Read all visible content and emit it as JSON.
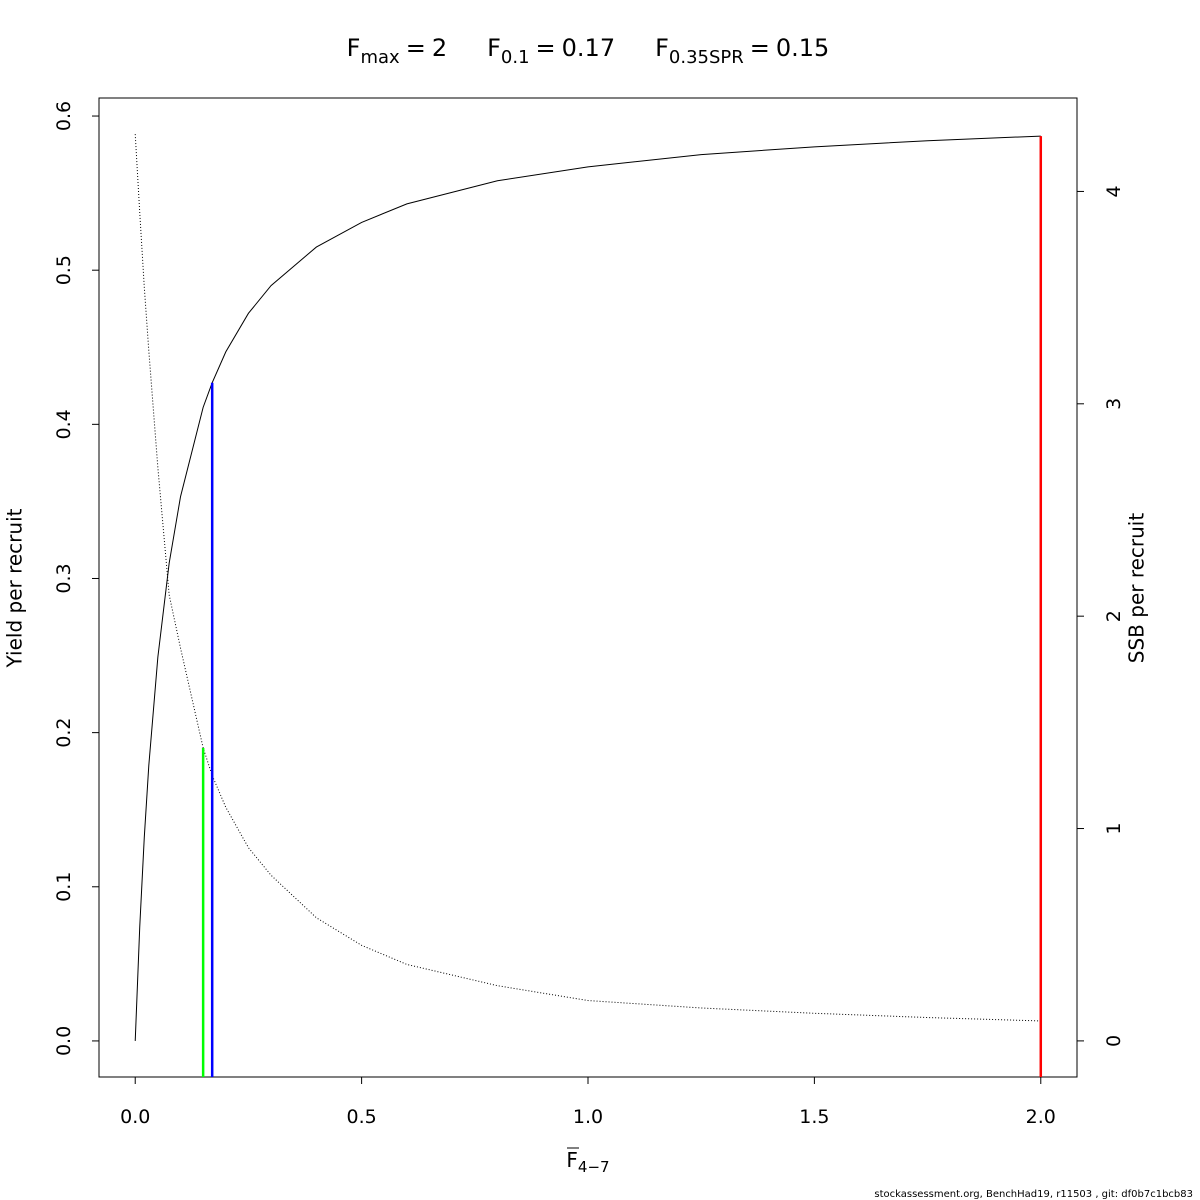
{
  "chart_data": {
    "type": "line",
    "reference_lines": [
      {
        "symbol": "F",
        "subscript": "max",
        "sign": "=",
        "x": 2,
        "y": 0.587,
        "color": "#ff0000"
      },
      {
        "symbol": "F",
        "subscript": "0.1",
        "sign": "=",
        "x": 0.17,
        "y": 0.427,
        "color": "#0000ff"
      },
      {
        "symbol": "F",
        "subscript": "0.35SPR",
        "sign": "=",
        "x": 0.15,
        "y": 0.19,
        "color": "#00ff00"
      }
    ],
    "xlabel": {
      "symbol": "F",
      "subscript": "4−7"
    },
    "ylabel": "Yield per recruit",
    "y2label": "SSB per recruit",
    "footer": "stockassessment.org, BenchHad19, r11503 , git: df0b7c1bcb83",
    "x": [
      0,
      0.01,
      0.02,
      0.03,
      0.05,
      0.075,
      0.1,
      0.15,
      0.17,
      0.2,
      0.25,
      0.3,
      0.4,
      0.5,
      0.6,
      0.8,
      1.0,
      1.25,
      1.5,
      1.75,
      2.0
    ],
    "series": [
      {
        "color": "#000000",
        "style": "solid",
        "axis": "y",
        "values": [
          0,
          0.0741,
          0.132,
          0.1787,
          0.249,
          0.31,
          0.353,
          0.411,
          0.427,
          0.447,
          0.472,
          0.49,
          0.515,
          0.531,
          0.543,
          0.558,
          0.567,
          0.575,
          0.58,
          0.584,
          0.587
        ]
      },
      {
        "color": "#000000",
        "style": "dotted",
        "axis": "y2",
        "values": [
          4.27,
          3.9,
          3.55,
          3.25,
          2.7,
          2.1,
          1.85,
          1.38,
          1.25,
          1.1,
          0.91,
          0.78,
          0.58,
          0.45,
          0.36,
          0.26,
          0.19,
          0.155,
          0.13,
          0.11,
          0.094
        ]
      }
    ],
    "xlim": [
      -0.08,
      2.08
    ],
    "xticks": [
      {
        "value": 0,
        "label": "0.0"
      },
      0.5,
      {
        "value": 1,
        "label": "1.0"
      },
      1.5,
      {
        "value": 2,
        "label": "2.0"
      }
    ],
    "ylim": [
      -0.0234,
      0.6117
    ],
    "yticks": [
      {
        "value": 0,
        "label": "0.0"
      },
      0.1,
      0.2,
      0.3,
      0.4,
      0.5,
      0.6
    ],
    "y2lim": [
      -0.17,
      4.44
    ],
    "y2ticks": [
      0,
      1,
      2,
      3,
      4
    ]
  }
}
